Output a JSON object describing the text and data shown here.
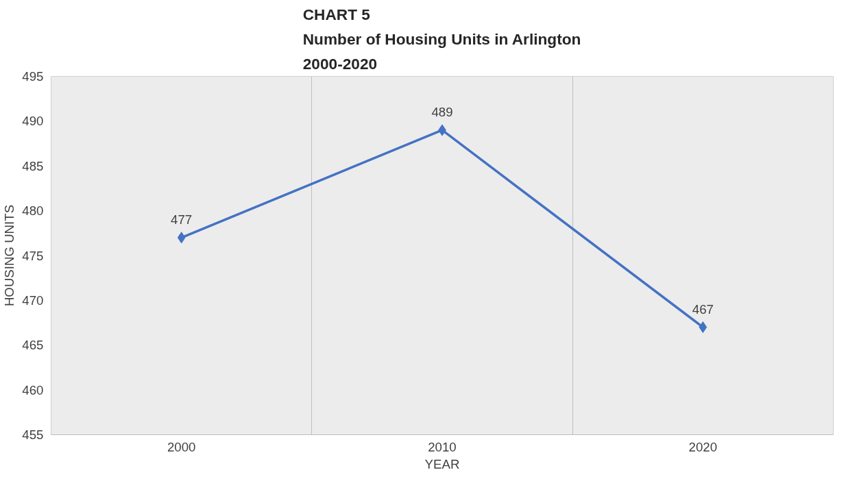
{
  "chart_data": {
    "type": "line",
    "title": "CHART 5\nNumber of Housing Units in Arlington\n2000-2020",
    "xlabel": "YEAR",
    "ylabel": "HOUSING UNITS",
    "categories": [
      "2000",
      "2010",
      "2020"
    ],
    "series": [
      {
        "color": "#4472c4",
        "values": [
          477,
          489,
          467
        ]
      }
    ],
    "ylim": [
      455,
      495
    ],
    "yticks": [
      455,
      460,
      465,
      470,
      475,
      480,
      485,
      490,
      495
    ],
    "grid": "x",
    "marker": "diamond",
    "line_style": "solid",
    "data_labels": true
  }
}
